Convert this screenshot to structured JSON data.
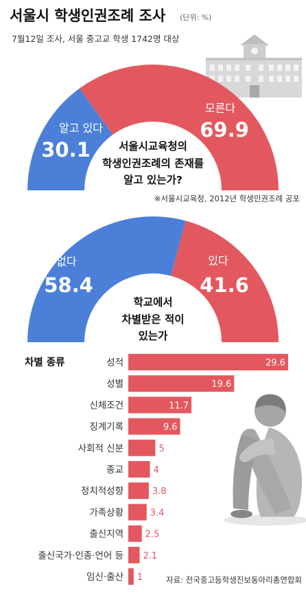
{
  "header": {
    "title": "서울시 학생인권조례 조사",
    "unit": "(단위: %)",
    "subtitle": "7월12일 조사, 서울 중고교 학생 1742명 대상"
  },
  "note": "※서울시교육청, 2012년 학생인권조례 공포",
  "source": "자료: 전국중고등학생진보동아리총연합회",
  "colors": {
    "blue": "#4c80d8",
    "red": "#e3585e",
    "building": "#d6d6d6",
    "figure": "#a9a9a9"
  },
  "chart_data": [
    {
      "type": "pie",
      "question_lines": [
        "서울시교육청의",
        "학생인권조례의 존재를",
        "알고 있는가?"
      ],
      "slices": [
        {
          "label": "알고 있다",
          "value": 30.1,
          "color": "#4c80d8"
        },
        {
          "label": "모른다",
          "value": 69.9,
          "color": "#e3585e"
        }
      ]
    },
    {
      "type": "pie",
      "question_lines": [
        "학교에서",
        "차별받은 적이",
        "있는가"
      ],
      "slices": [
        {
          "label": "없다",
          "value": 58.4,
          "color": "#4c80d8"
        },
        {
          "label": "있다",
          "value": 41.6,
          "color": "#e3585e"
        }
      ]
    },
    {
      "type": "bar",
      "title": "차별 종류",
      "categories": [
        "성적",
        "성별",
        "신체조건",
        "징계기록",
        "사회적 신분",
        "종교",
        "정치적성향",
        "가족상황",
        "출신지역",
        "출신국가·인종·언어 등",
        "임신·출산"
      ],
      "values": [
        29.6,
        19.6,
        11.7,
        9.6,
        5,
        4,
        3.8,
        3.4,
        2.5,
        2.1,
        1
      ],
      "color": "#e3585e"
    }
  ]
}
